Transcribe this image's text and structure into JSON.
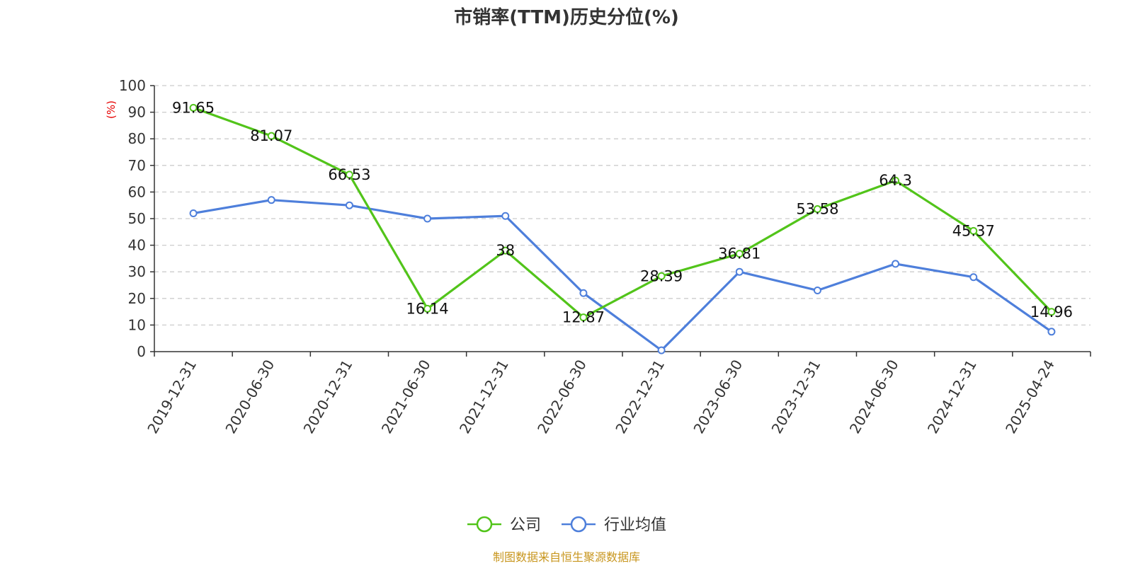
{
  "chart_data": {
    "type": "line",
    "title": "市销率(TTM)历史分位(%)",
    "ylabel": "(%)",
    "ylim": [
      0,
      100
    ],
    "yticks": [
      0,
      10,
      20,
      30,
      40,
      50,
      60,
      70,
      80,
      90,
      100
    ],
    "categories": [
      "2019-12-31",
      "2020-06-30",
      "2020-12-31",
      "2021-06-30",
      "2021-12-31",
      "2022-06-30",
      "2022-12-31",
      "2023-06-30",
      "2023-12-31",
      "2024-06-30",
      "2024-12-31",
      "2025-04-24"
    ],
    "series": [
      {
        "name": "公司",
        "color": "#52c41a",
        "values": [
          91.65,
          81.07,
          66.53,
          16.14,
          38,
          12.87,
          28.39,
          36.81,
          53.58,
          64.3,
          45.37,
          14.96
        ],
        "labels": [
          "91.65",
          "81.07",
          "66.53",
          "16.14",
          "38",
          "12.87",
          "28.39",
          "36.81",
          "53.58",
          "64.3",
          "45.37",
          "14.96"
        ]
      },
      {
        "name": "行业均值",
        "color": "#4e7fdb",
        "values": [
          52,
          57,
          55,
          50,
          51,
          22,
          0.5,
          30,
          23,
          33,
          28,
          7.5
        ]
      }
    ],
    "grid": true,
    "legend_position": "bottom-center",
    "unit_color": "#e60000",
    "source_text": "制图数据来自恒生聚源数据库",
    "source_color": "#c8961e"
  }
}
